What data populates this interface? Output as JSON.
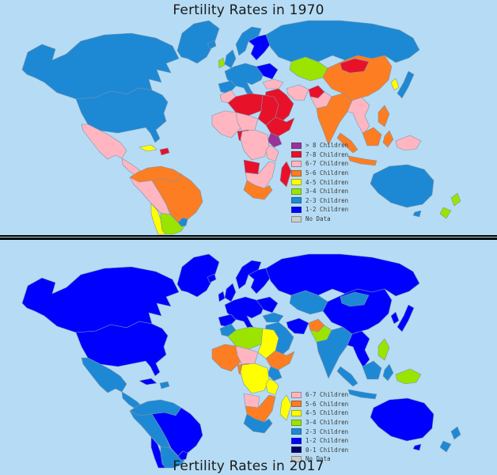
{
  "colors": {
    "ocean": "#b5dcf4",
    "divider": "#000000",
    "title_text": "#1a1a1a",
    "legend_text": "#3a3a3a",
    "no_data": "#cccccc"
  },
  "legend_classes": [
    {
      "id": "gt8",
      "label": "> 8 Children",
      "color": "#993399"
    },
    {
      "id": "c78",
      "label": "7-8 Children",
      "color": "#e8112a"
    },
    {
      "id": "c67",
      "label": "6-7 Children",
      "color": "#ffb6c1"
    },
    {
      "id": "c56",
      "label": "5-6 Children",
      "color": "#fd7d23"
    },
    {
      "id": "c45",
      "label": "4-5 Children",
      "color": "#ffff00"
    },
    {
      "id": "c34",
      "label": "3-4 Children",
      "color": "#9ae400"
    },
    {
      "id": "c23",
      "label": "2-3 Children",
      "color": "#1d89d4"
    },
    {
      "id": "c12",
      "label": "1-2 Children",
      "color": "#0000ff"
    },
    {
      "id": "c01",
      "label": "0-1 Children",
      "color": "#000066"
    },
    {
      "id": "nodata",
      "label": "No Data",
      "color": "#cccccc"
    }
  ],
  "chart_data": [
    {
      "type": "choropleth_map",
      "title": "Fertility Rates in 1970",
      "legend_position": "right-lower",
      "legend": [
        "gt8",
        "c78",
        "c67",
        "c56",
        "c45",
        "c34",
        "c23",
        "c12",
        "nodata"
      ],
      "regions": {
        "greenland": "c23",
        "iceland": "c23",
        "canada": "c23",
        "usa": "c23",
        "mexico": "c67",
        "central-america": "c67",
        "cuba": "c45",
        "hispaniola": "c78",
        "colombia-venezuela": "c56",
        "peru-bolivia": "c67",
        "brazil": "c56",
        "chile": "c45",
        "argentina": "c34",
        "uruguay": "c23",
        "uk": "c23",
        "ireland": "c34",
        "scandinavia": "c23",
        "sweden-finland": "c12",
        "west-europe": "c23",
        "iberia": "c23",
        "east-europe": "c12",
        "russia": "c23",
        "kazakhstan": "c34",
        "turkey": "c67",
        "middle-east": "c78",
        "iran": "c67",
        "afghanistan": "c78",
        "pakistan": "c67",
        "india": "c56",
        "china": "c56",
        "mongolia": "c78",
        "se-asia": "c67",
        "sumatra": "c56",
        "java": "c56",
        "borneo": "c56",
        "sulawesi": "c56",
        "png": "c67",
        "philippines": "c56",
        "japan": "c23",
        "korea": "c45",
        "morocco": "c67",
        "algeria-libya": "c78",
        "egypt-sudan": "c78",
        "west-africa": "c67",
        "niger-chad": "c67",
        "nigeria": "c78",
        "horn": "c78",
        "kenya": "gt8",
        "central-africa": "c67",
        "tanzania": "c67",
        "angola": "c78",
        "southern-africa": "c67",
        "south-africa": "c56",
        "madagascar": "c78",
        "australia": "c23",
        "tasmania": "c23",
        "nz-north": "c34",
        "nz-south": "c34"
      }
    },
    {
      "type": "choropleth_map",
      "title": "Fertility Rates in 2017",
      "legend_position": "right-lower",
      "legend": [
        "c67",
        "c56",
        "c45",
        "c34",
        "c23",
        "c12",
        "c01",
        "nodata"
      ],
      "regions": {
        "greenland": "c12",
        "iceland": "c12",
        "canada": "c12",
        "usa": "c12",
        "mexico": "c23",
        "central-america": "c23",
        "cuba": "c12",
        "hispaniola": "c23",
        "colombia-venezuela": "c23",
        "peru-bolivia": "c23",
        "brazil": "c12",
        "chile": "c12",
        "argentina": "c23",
        "uruguay": "c12",
        "uk": "c12",
        "ireland": "c12",
        "scandinavia": "c12",
        "sweden-finland": "c12",
        "west-europe": "c12",
        "iberia": "c12",
        "east-europe": "c12",
        "russia": "c12",
        "kazakhstan": "c23",
        "turkey": "c23",
        "middle-east": "c23",
        "iran": "c12",
        "afghanistan": "c56",
        "pakistan": "c34",
        "india": "c23",
        "china": "c12",
        "mongolia": "c23",
        "se-asia": "c12",
        "sumatra": "c23",
        "java": "c23",
        "borneo": "c23",
        "sulawesi": "c23",
        "png": "c34",
        "philippines": "c34",
        "japan": "c12",
        "korea": "c12",
        "morocco": "c23",
        "algeria-libya": "c34",
        "egypt-sudan": "c45",
        "west-africa": "c56",
        "niger-chad": "c67",
        "nigeria": "c56",
        "horn": "c56",
        "kenya": "c23",
        "central-africa": "c45",
        "tanzania": "c45",
        "angola": "c67",
        "southern-africa": "c56",
        "south-africa": "c23",
        "madagascar": "c45",
        "australia": "c12",
        "tasmania": "c12",
        "nz-north": "c23",
        "nz-south": "c23"
      }
    }
  ]
}
